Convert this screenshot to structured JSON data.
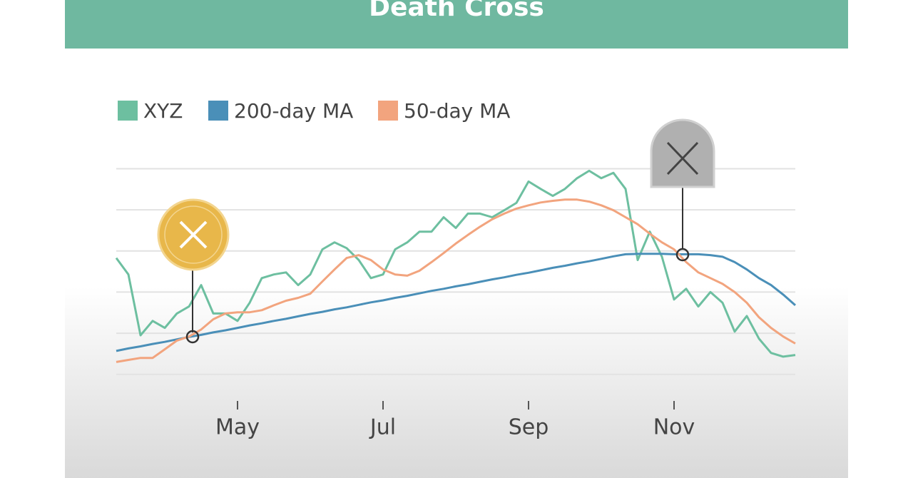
{
  "chart_data": {
    "type": "line",
    "title": "Death Cross",
    "categories": [
      null,
      null,
      null,
      null,
      null,
      null,
      null,
      null,
      null,
      null,
      "May",
      null,
      null,
      null,
      null,
      null,
      null,
      null,
      null,
      null,
      null,
      null,
      "Jul",
      null,
      null,
      null,
      null,
      null,
      null,
      null,
      null,
      null,
      null,
      null,
      "Sep",
      null,
      null,
      null,
      null,
      null,
      null,
      null,
      null,
      null,
      null,
      null,
      "Nov",
      null,
      null,
      null,
      null,
      null,
      null,
      null,
      null,
      null,
      null
    ],
    "series": [
      {
        "name": "XYZ",
        "color": "#6dbfa0",
        "values": [
          2.83,
          2.43,
          0.95,
          1.3,
          1.13,
          1.48,
          1.65,
          2.17,
          1.48,
          1.48,
          1.3,
          1.74,
          2.34,
          2.43,
          2.48,
          2.17,
          2.43,
          3.04,
          3.21,
          3.07,
          2.78,
          2.34,
          2.43,
          3.04,
          3.21,
          3.47,
          3.47,
          3.82,
          3.56,
          3.91,
          3.91,
          3.82,
          3.99,
          4.17,
          4.69,
          4.51,
          4.34,
          4.51,
          4.77,
          4.95,
          4.77,
          4.9,
          4.51,
          2.78,
          3.47,
          2.86,
          1.82,
          2.08,
          1.65,
          2.0,
          1.74,
          1.04,
          1.42,
          0.87,
          0.52,
          0.43,
          0.47
        ]
      },
      {
        "name": "200-day MA",
        "color": "#4a8fb8",
        "values": [
          0.57,
          0.63,
          0.68,
          0.74,
          0.79,
          0.85,
          0.91,
          0.96,
          1.02,
          1.07,
          1.13,
          1.19,
          1.24,
          1.3,
          1.35,
          1.41,
          1.47,
          1.52,
          1.58,
          1.63,
          1.69,
          1.75,
          1.8,
          1.86,
          1.91,
          1.97,
          2.03,
          2.08,
          2.14,
          2.19,
          2.25,
          2.31,
          2.36,
          2.42,
          2.47,
          2.53,
          2.59,
          2.64,
          2.7,
          2.75,
          2.81,
          2.87,
          2.92,
          2.93,
          2.93,
          2.93,
          2.92,
          2.92,
          2.92,
          2.9,
          2.86,
          2.73,
          2.55,
          2.34,
          2.17,
          1.94,
          1.68
        ]
      },
      {
        "name": "50-day MA",
        "color": "#f2a47e",
        "values": [
          0.3,
          0.35,
          0.4,
          0.4,
          0.61,
          0.82,
          0.92,
          1.09,
          1.34,
          1.48,
          1.51,
          1.51,
          1.56,
          1.68,
          1.79,
          1.86,
          1.96,
          2.26,
          2.55,
          2.83,
          2.9,
          2.78,
          2.55,
          2.43,
          2.4,
          2.52,
          2.73,
          2.95,
          3.18,
          3.39,
          3.59,
          3.77,
          3.91,
          4.03,
          4.11,
          4.18,
          4.22,
          4.25,
          4.25,
          4.2,
          4.11,
          3.99,
          3.82,
          3.65,
          3.42,
          3.21,
          3.04,
          2.73,
          2.48,
          2.34,
          2.2,
          2.0,
          1.74,
          1.39,
          1.13,
          0.92,
          0.75
        ]
      }
    ],
    "ylim": [
      -0.3,
      5.2
    ],
    "ygrid": [
      0,
      1,
      2,
      3,
      4,
      5
    ],
    "grid": true,
    "legend": "top-left"
  }
}
